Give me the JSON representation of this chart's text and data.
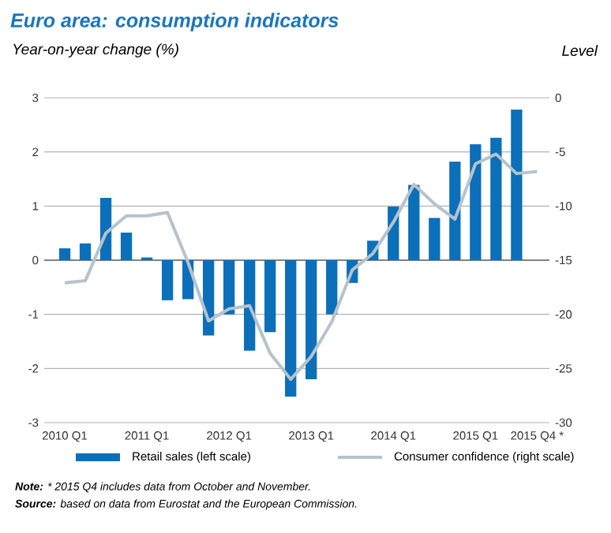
{
  "chart_data": {
    "type": "bar",
    "title": "Euro area: consumption indicators",
    "ylabel": "Year-on-year change (%)",
    "y2label": "Level",
    "categories": [
      "2010 Q1",
      null,
      null,
      null,
      "2011 Q1",
      null,
      null,
      null,
      "2012 Q1",
      null,
      null,
      null,
      "2013 Q1",
      null,
      null,
      null,
      "2014 Q1",
      null,
      null,
      null,
      "2015 Q1",
      null,
      null,
      "2015 Q4 *"
    ],
    "series": [
      {
        "name": "Retail sales (left scale)",
        "color": "#0b6fba",
        "values": [
          0.22,
          0.31,
          1.15,
          0.51,
          0.05,
          -0.74,
          -0.72,
          -1.39,
          -1.0,
          -1.67,
          -1.33,
          -2.52,
          -2.2,
          -1.0,
          -0.42,
          0.36,
          0.99,
          1.39,
          0.78,
          1.82,
          2.14,
          2.26,
          2.78,
          null
        ]
      },
      {
        "name": "Consumer confidence (right scale)",
        "type": "line",
        "axis": "y2",
        "color": "#b5c3cc",
        "values": [
          -17.1,
          -16.9,
          -12.5,
          -10.9,
          -10.9,
          -10.6,
          -15.2,
          -20.6,
          -19.5,
          -19.2,
          -23.6,
          -26.0,
          -23.9,
          -20.7,
          -15.9,
          -14.4,
          -11.5,
          -8.0,
          -9.8,
          -11.2,
          -6.1,
          -5.2,
          -7.0,
          -6.8
        ]
      }
    ],
    "ylim": [
      -3,
      3
    ],
    "yticks": [
      -3,
      -2,
      -1,
      0,
      1,
      2,
      3
    ],
    "y2lim": [
      -30,
      0
    ],
    "y2ticks": [
      -30,
      -25,
      -20,
      -15,
      -10,
      -5,
      0
    ],
    "grid": "y",
    "legend": "bottom",
    "annotations": [
      "**Note:** * 2015 Q4 includes data from October and November.",
      "**Source:** based on data from Eurostat and the European Commission."
    ]
  }
}
